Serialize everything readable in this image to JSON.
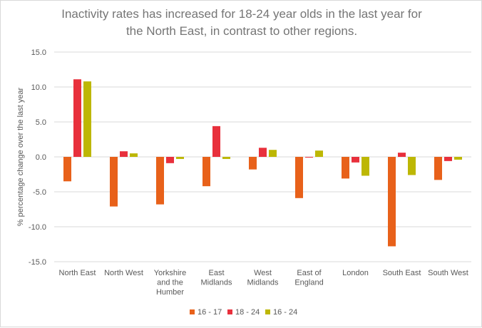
{
  "chart_data": {
    "type": "bar",
    "title_lines": [
      "Inactivity rates has increased for 18-24 year olds in the last year for",
      "the North East, in contrast to other regions."
    ],
    "ylabel": "% percentage change over the last year",
    "xlabel": "",
    "ylim": [
      -15,
      15
    ],
    "y_ticks": [
      "15.0",
      "10.0",
      "5.0",
      "0.0",
      "-5.0",
      "-10.0",
      "-15.0"
    ],
    "y_tick_values": [
      15,
      10,
      5,
      0,
      -5,
      -10,
      -15
    ],
    "categories": [
      [
        "North East"
      ],
      [
        "North West"
      ],
      [
        "Yorkshire",
        "and the",
        "Humber"
      ],
      [
        "East",
        "Midlands"
      ],
      [
        "West",
        "Midlands"
      ],
      [
        "East of",
        "England"
      ],
      [
        "London"
      ],
      [
        "South East"
      ],
      [
        "South West"
      ]
    ],
    "series": [
      {
        "name": "16 - 17",
        "color": "#e8611a",
        "values": [
          -3.5,
          -7.1,
          -6.8,
          -4.2,
          -1.8,
          -5.9,
          -3.1,
          -12.8,
          -3.3
        ]
      },
      {
        "name": "18 - 24",
        "color": "#e8303c",
        "values": [
          11.1,
          0.8,
          -0.9,
          4.4,
          1.3,
          -0.1,
          -0.8,
          0.6,
          -0.6
        ]
      },
      {
        "name": "16 - 24",
        "color": "#bdb704",
        "values": [
          10.8,
          0.5,
          -0.3,
          -0.3,
          1.0,
          0.9,
          -2.7,
          -2.6,
          -0.4
        ]
      }
    ],
    "grid": true,
    "legend_position": "bottom"
  }
}
